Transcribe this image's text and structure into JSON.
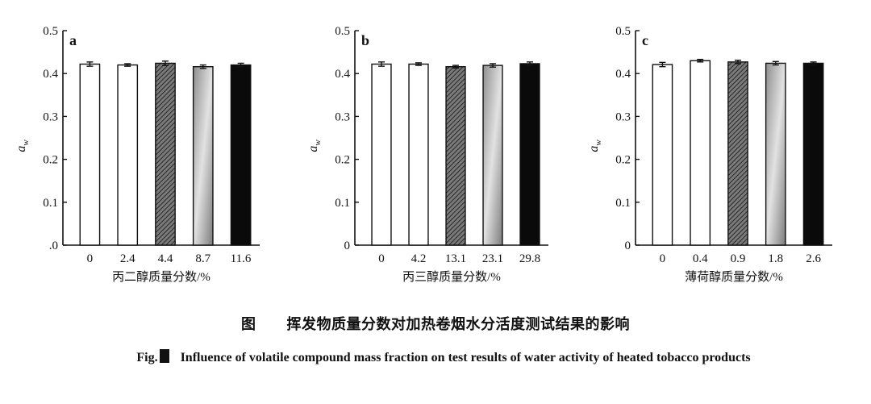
{
  "figure": {
    "caption_cn_label": "图",
    "caption_cn": "挥发物质量分数对加热卷烟水分活度测试结果的影响",
    "caption_en_label": "Fig.",
    "caption_en": "Influence of volatile compound mass fraction on test results of water activity of heated tobacco products"
  },
  "chart_data": [
    {
      "type": "bar",
      "panel": "a",
      "categories": [
        "0",
        "2.4",
        "4.4",
        "8.7",
        "11.6"
      ],
      "values": [
        0.422,
        0.42,
        0.424,
        0.416,
        0.42
      ],
      "errors": [
        0.005,
        0.003,
        0.005,
        0.004,
        0.004
      ],
      "bar_fills": [
        "white",
        "white",
        "hatch",
        "gradient",
        "black"
      ],
      "xlabel": "丙二醇质量分数/%",
      "ylabel": "a_w",
      "ylim": [
        0,
        0.5
      ],
      "yticks": [
        ".0",
        "0.1",
        "0.2",
        "0.3",
        "0.4",
        "0.5"
      ]
    },
    {
      "type": "bar",
      "panel": "b",
      "categories": [
        "0",
        "4.2",
        "13.1",
        "23.1",
        "29.8"
      ],
      "values": [
        0.422,
        0.422,
        0.416,
        0.419,
        0.423
      ],
      "errors": [
        0.005,
        0.003,
        0.003,
        0.004,
        0.004
      ],
      "bar_fills": [
        "white",
        "white",
        "hatch",
        "gradient",
        "black"
      ],
      "xlabel": "丙三醇质量分数/%",
      "ylabel": "a_w",
      "ylim": [
        0,
        0.5
      ],
      "yticks": [
        "0",
        "0.1",
        "0.2",
        "0.3",
        "0.4",
        "0.5"
      ]
    },
    {
      "type": "bar",
      "panel": "c",
      "categories": [
        "0",
        "0.4",
        "0.9",
        "1.8",
        "2.6"
      ],
      "values": [
        0.421,
        0.43,
        0.427,
        0.424,
        0.424
      ],
      "errors": [
        0.005,
        0.003,
        0.004,
        0.004,
        0.003
      ],
      "bar_fills": [
        "white",
        "white",
        "hatch",
        "gradient",
        "black"
      ],
      "xlabel": "薄荷醇质量分数/%",
      "ylabel": "a_w",
      "ylim": [
        0,
        0.5
      ],
      "yticks": [
        "0",
        "0.1",
        "0.2",
        "0.3",
        "0.4",
        "0.5"
      ]
    }
  ]
}
